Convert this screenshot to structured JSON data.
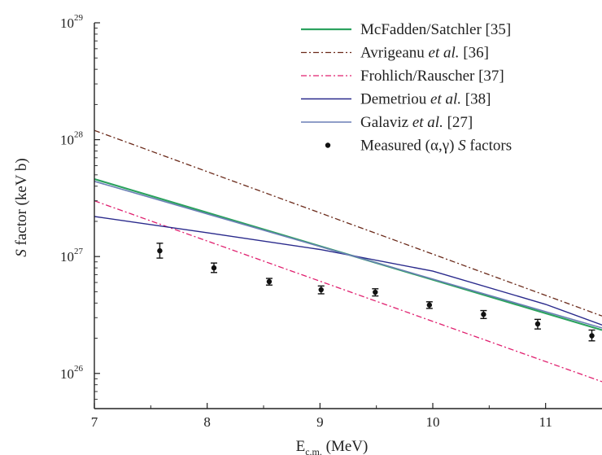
{
  "chart_data": {
    "type": "line",
    "xlabel": "E_c.m. (MeV)",
    "xlabel_main": "E",
    "xlabel_sub": "c.m.",
    "xlabel_unit": " (MeV)",
    "ylabel": "S factor (keV b)",
    "ylabel_symbol": "S",
    "ylabel_rest": " factor (keV b)",
    "xlim": [
      7,
      11.5
    ],
    "ylim": [
      5e+25,
      1e+29
    ],
    "yscale": "log",
    "xticks": [
      7,
      8,
      9,
      10,
      11
    ],
    "xtick_labels": [
      "7",
      "8",
      "9",
      "10",
      "11"
    ],
    "yticks": [
      1e+26,
      1e+27,
      1e+28,
      1e+29
    ],
    "ytick_labels": [
      {
        "base": "10",
        "exp": "26"
      },
      {
        "base": "10",
        "exp": "27"
      },
      {
        "base": "10",
        "exp": "28"
      },
      {
        "base": "10",
        "exp": "29"
      }
    ],
    "legend_position": "top-right",
    "series": [
      {
        "name": "McFadden/Satchler [35]",
        "legend": {
          "pre": "McFadden/Satchler [35]",
          "em": "",
          "post": ""
        },
        "color": "#2ca25f",
        "dash": "",
        "width": 2.2,
        "x": [
          7.0,
          11.5
        ],
        "y": [
          4.6e+27,
          2.35e+26
        ]
      },
      {
        "name": "Avrigeanu et al. [36]",
        "legend": {
          "pre": "Avrigeanu ",
          "em": "et al.",
          "post": " [36]"
        },
        "color": "#6b2a1a",
        "dash": "7,3,2,3",
        "width": 1.3,
        "x": [
          7.0,
          11.5
        ],
        "y": [
          1.2e+28,
          3.1e+26
        ]
      },
      {
        "name": "Frohlich/Rauscher [37]",
        "legend": {
          "pre": "Frohlich/Rauscher [37]",
          "em": "",
          "post": ""
        },
        "color": "#e0206f",
        "dash": "7,3,2,3",
        "width": 1.3,
        "x": [
          7.0,
          11.5
        ],
        "y": [
          3e+27,
          8.5e+25
        ]
      },
      {
        "name": "Demetriou et al. [38]",
        "legend": {
          "pre": "Demetriou ",
          "em": "et al.",
          "post": " [38]"
        },
        "color": "#2a2a8c",
        "dash": "",
        "width": 1.4,
        "x": [
          7.0,
          8.0,
          9.0,
          10.0,
          11.0,
          11.5
        ],
        "y": [
          2.2e+27,
          1.6e+27,
          1.15e+27,
          7.5e+26,
          3.9e+26,
          2.6e+26
        ]
      },
      {
        "name": "Galaviz et al. [27]",
        "legend": {
          "pre": "Galaviz ",
          "em": "et al.",
          "post": " [27]"
        },
        "color": "#6a7fb5",
        "dash": "",
        "width": 1.6,
        "x": [
          7.0,
          11.5
        ],
        "y": [
          4.4e+27,
          2.45e+26
        ]
      }
    ],
    "measured": {
      "name": "Measured (α,γ) S factors",
      "legend": {
        "pre": "Measured (α,γ) ",
        "em": "S",
        "post": " factors"
      },
      "color": "#111111",
      "points": [
        {
          "x": 7.58,
          "y": 1.12e+27,
          "lo": 9.7e+26,
          "hi": 1.3e+27
        },
        {
          "x": 8.06,
          "y": 8e+26,
          "lo": 7.3e+26,
          "hi": 8.8e+26
        },
        {
          "x": 8.55,
          "y": 6.1e+26,
          "lo": 5.7e+26,
          "hi": 6.5e+26
        },
        {
          "x": 9.01,
          "y": 5.2e+26,
          "lo": 4.8e+26,
          "hi": 5.6e+26
        },
        {
          "x": 9.49,
          "y": 4.95e+26,
          "lo": 4.6e+26,
          "hi": 5.3e+26
        },
        {
          "x": 9.97,
          "y": 3.85e+26,
          "lo": 3.6e+26,
          "hi": 4.1e+26
        },
        {
          "x": 10.45,
          "y": 3.2e+26,
          "lo": 2.95e+26,
          "hi": 3.45e+26
        },
        {
          "x": 10.93,
          "y": 2.65e+26,
          "lo": 2.4e+26,
          "hi": 2.9e+26
        },
        {
          "x": 11.41,
          "y": 2.1e+26,
          "lo": 1.9e+26,
          "hi": 2.35e+26
        }
      ]
    }
  }
}
